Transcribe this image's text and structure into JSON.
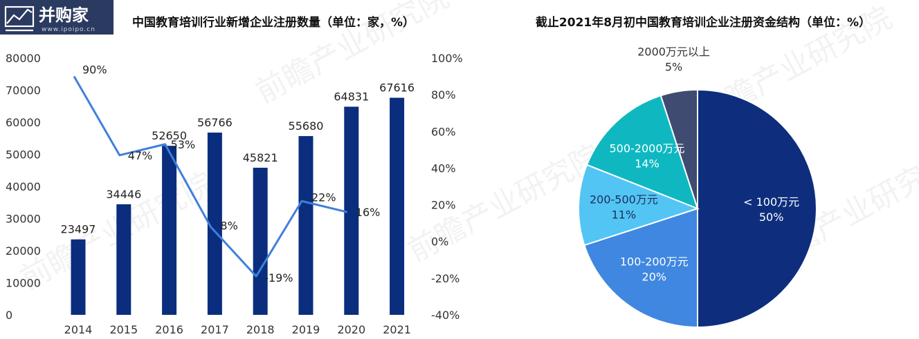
{
  "logo": {
    "text": "并购家",
    "url_text": "www.ipoipo.cn"
  },
  "watermark": {
    "text": "前瞻产业研究院"
  },
  "chart_data": [
    {
      "type": "bar",
      "title": "中国教育培训行业新增企业注册数量（单位：家，%）",
      "categories": [
        "2014",
        "2015",
        "2016",
        "2017",
        "2018",
        "2019",
        "2020",
        "2021"
      ],
      "series": [
        {
          "values": [
            23497,
            34446,
            52650,
            56766,
            45821,
            55680,
            64831,
            67616
          ],
          "color": "#0a2d7e"
        },
        {
          "type": "line",
          "axis": "right",
          "values": [
            90,
            47,
            53,
            8,
            -19,
            22,
            16,
            null
          ],
          "labels": [
            "90%",
            "47%",
            "53%",
            "8%",
            "-19%",
            "22%",
            "16%",
            ""
          ],
          "color": "#3f7fdc"
        }
      ],
      "y_left": {
        "ticks": [
          "0",
          "10000",
          "20000",
          "30000",
          "40000",
          "50000",
          "60000",
          "70000",
          "80000"
        ],
        "range": [
          0,
          80000
        ]
      },
      "y_right": {
        "ticks": [
          "-40%",
          "-20%",
          "0%",
          "20%",
          "40%",
          "60%",
          "80%",
          "100%"
        ],
        "range": [
          -40,
          100
        ]
      }
    },
    {
      "type": "pie",
      "title": "截止2021年8月初中国教育培训企业注册资金结构（单位：%）",
      "slices": [
        {
          "label": "< 100万元",
          "value": 50,
          "pct": "50%",
          "color": "#0e2e7d",
          "text_color": "#ffffff"
        },
        {
          "label": "100-200万元",
          "value": 20,
          "pct": "20%",
          "color": "#3f87e0",
          "text_color": "#ffffff"
        },
        {
          "label": "200-500万元",
          "value": 11,
          "pct": "11%",
          "color": "#52c5f5",
          "text_color": "#1d2f56"
        },
        {
          "label": "500-2000万元",
          "value": 14,
          "pct": "14%",
          "color": "#0fb8c1",
          "text_color": "#ffffff"
        },
        {
          "label": "2000万元以上",
          "value": 5,
          "pct": "5%",
          "color": "#3f4b70",
          "text_color": "#333333",
          "label_outside": true
        }
      ]
    }
  ]
}
